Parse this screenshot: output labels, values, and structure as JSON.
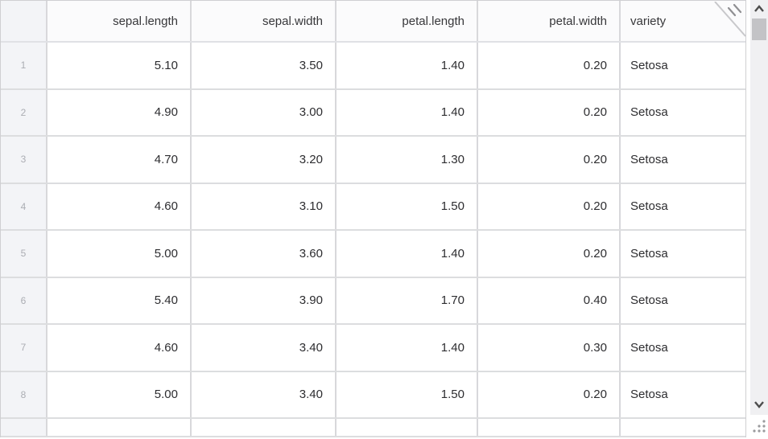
{
  "grid": {
    "columns": [
      {
        "key": "rownum",
        "label": "",
        "align": "center"
      },
      {
        "key": "sepal-length",
        "label": "sepal.length",
        "align": "right"
      },
      {
        "key": "sepal-width",
        "label": "sepal.width",
        "align": "right"
      },
      {
        "key": "petal-length",
        "label": "petal.length",
        "align": "right"
      },
      {
        "key": "petal-width",
        "label": "petal.width",
        "align": "right"
      },
      {
        "key": "variety",
        "label": "variety",
        "align": "left"
      }
    ],
    "rows": [
      {
        "num": "1",
        "cells": [
          "5.10",
          "3.50",
          "1.40",
          "0.20",
          "Setosa"
        ]
      },
      {
        "num": "2",
        "cells": [
          "4.90",
          "3.00",
          "1.40",
          "0.20",
          "Setosa"
        ]
      },
      {
        "num": "3",
        "cells": [
          "4.70",
          "3.20",
          "1.30",
          "0.20",
          "Setosa"
        ]
      },
      {
        "num": "4",
        "cells": [
          "4.60",
          "3.10",
          "1.50",
          "0.20",
          "Setosa"
        ]
      },
      {
        "num": "5",
        "cells": [
          "5.00",
          "3.60",
          "1.40",
          "0.20",
          "Setosa"
        ]
      },
      {
        "num": "6",
        "cells": [
          "5.40",
          "3.90",
          "1.70",
          "0.40",
          "Setosa"
        ]
      },
      {
        "num": "7",
        "cells": [
          "4.60",
          "3.40",
          "1.40",
          "0.30",
          "Setosa"
        ]
      },
      {
        "num": "8",
        "cells": [
          "5.00",
          "3.40",
          "1.50",
          "0.20",
          "Setosa"
        ]
      }
    ],
    "partial_row_visible": true
  },
  "icons": {
    "corner": "corner-fold",
    "scroll_up": "chevron-up",
    "scroll_down": "chevron-down",
    "resize": "resize-grip"
  },
  "colors": {
    "cell_bg": "#ffffff",
    "header_bg": "#fbfbfc",
    "rowhead_bg": "#f3f4f7",
    "grid_line_v": "#d8d8db",
    "grid_line_h": "#dcdddf",
    "outer_border": "#cfcfd2",
    "text": "#2d2d30",
    "row_number_text": "#abadb3",
    "scroll_track": "#f0f0f2",
    "scroll_thumb": "#c3c3c6",
    "scroll_arrow": "#4d4d4d",
    "fold_line": "#c8c8cb",
    "fold_ticks": "#8f8f92",
    "grip_dots": "#9a9a9d"
  }
}
